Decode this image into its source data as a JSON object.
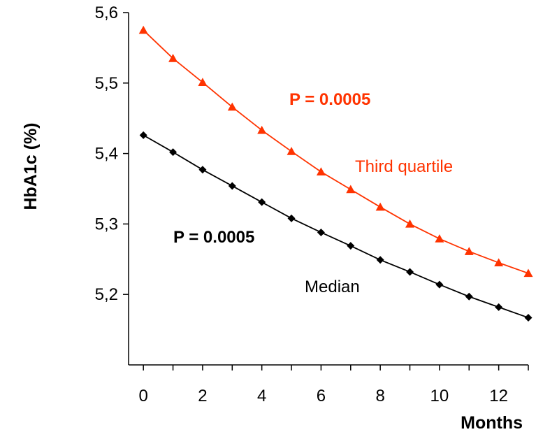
{
  "chart_data": {
    "type": "line",
    "title": "",
    "xlabel": "Months",
    "ylabel": "HbA1c (%)",
    "xlim": [
      -0.5,
      13
    ],
    "ylim": [
      5.1,
      5.6
    ],
    "x_ticks": [
      0,
      2,
      4,
      6,
      8,
      10,
      12
    ],
    "x_tick_labels": [
      "0",
      "2",
      "4",
      "6",
      "8",
      "10",
      "12"
    ],
    "y_ticks": [
      5.2,
      5.3,
      5.4,
      5.5,
      5.6
    ],
    "y_tick_labels": [
      "5,2",
      "5,3",
      "5,4",
      "5,5",
      "5,6"
    ],
    "grid": false,
    "legend": "none",
    "x": [
      0,
      1,
      2,
      3,
      4,
      5,
      6,
      7,
      8,
      9,
      10,
      11,
      12,
      13
    ],
    "series": [
      {
        "color": "#ff3300",
        "marker": "triangle",
        "values": [
          5.575,
          5.535,
          5.501,
          5.466,
          5.433,
          5.403,
          5.374,
          5.349,
          5.324,
          5.3,
          5.279,
          5.261,
          5.245,
          5.23
        ]
      },
      {
        "color": "#000000",
        "marker": "diamond",
        "values": [
          5.426,
          5.402,
          5.377,
          5.354,
          5.331,
          5.308,
          5.288,
          5.269,
          5.249,
          5.232,
          5.214,
          5.197,
          5.182,
          5.167
        ]
      }
    ],
    "annotations": [
      {
        "text": "P = 0.0005",
        "color": "#ff3300",
        "bold": true
      },
      {
        "text": "Third quartile",
        "color": "#ff3300",
        "bold": false
      },
      {
        "text": "P = 0.0005",
        "color": "#000000",
        "bold": true
      },
      {
        "text": "Median",
        "color": "#000000",
        "bold": false
      }
    ]
  }
}
